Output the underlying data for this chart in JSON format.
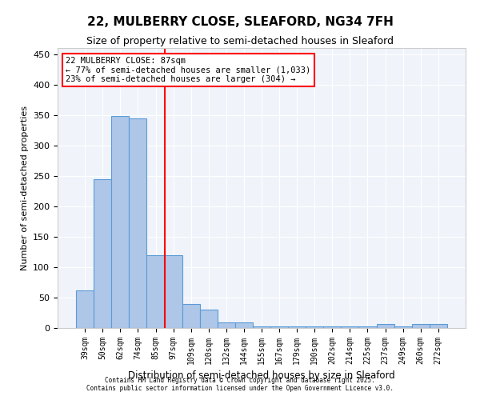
{
  "title1": "22, MULBERRY CLOSE, SLEAFORD, NG34 7FH",
  "title2": "Size of property relative to semi-detached houses in Sleaford",
  "xlabel": "Distribution of semi-detached houses by size in Sleaford",
  "ylabel": "Number of semi-detached properties",
  "categories": [
    "39sqm",
    "50sqm",
    "62sqm",
    "74sqm",
    "85sqm",
    "97sqm",
    "109sqm",
    "120sqm",
    "132sqm",
    "144sqm",
    "155sqm",
    "167sqm",
    "179sqm",
    "190sqm",
    "202sqm",
    "214sqm",
    "225sqm",
    "237sqm",
    "249sqm",
    "260sqm",
    "272sqm"
  ],
  "values": [
    62,
    245,
    348,
    345,
    120,
    120,
    39,
    30,
    9,
    9,
    2,
    2,
    2,
    2,
    2,
    2,
    2,
    6,
    2,
    6,
    6
  ],
  "bar_color": "#aec6e8",
  "bar_edge_color": "#5b9bd5",
  "vline_x": 4.5,
  "vline_color": "red",
  "annotation_title": "22 MULBERRY CLOSE: 87sqm",
  "annotation_line1": "← 77% of semi-detached houses are smaller (1,033)",
  "annotation_line2": "23% of semi-detached houses are larger (304) →",
  "annotation_box_color": "red",
  "ylim": [
    0,
    460
  ],
  "yticks": [
    0,
    50,
    100,
    150,
    200,
    250,
    300,
    350,
    400,
    450
  ],
  "bg_color": "#f0f4fa",
  "footer1": "Contains HM Land Registry data © Crown copyright and database right 2025.",
  "footer2": "Contains public sector information licensed under the Open Government Licence v3.0."
}
